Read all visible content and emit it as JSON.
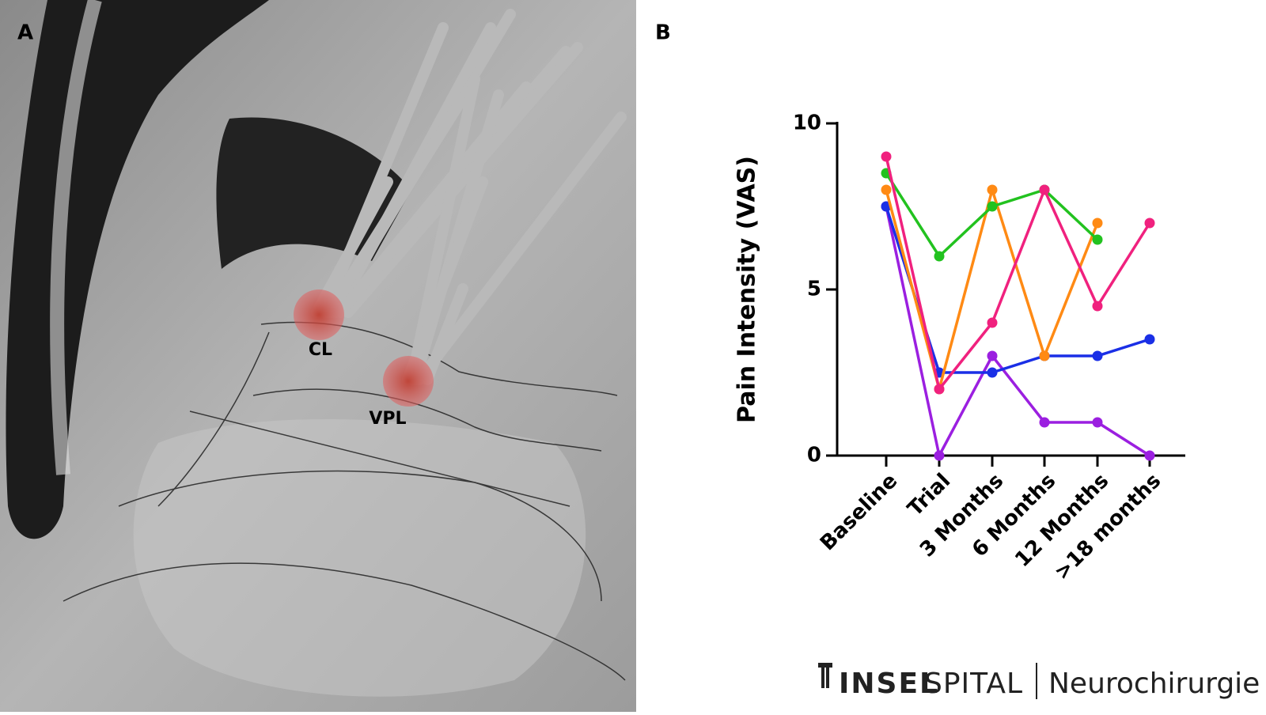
{
  "panels": {
    "a": {
      "label": "A",
      "annotations": [
        "CL",
        "VPL"
      ]
    },
    "b": {
      "label": "B"
    }
  },
  "chart_data": {
    "type": "line",
    "y_label": "Pain Intensity (VAS)",
    "categories": [
      "Baseline",
      "Trial",
      "3 Months",
      "6 Months",
      "12 Months",
      ">18 months"
    ],
    "series": [
      {
        "name": null,
        "color": "#9b1fe0",
        "values": [
          7.5,
          0,
          3,
          1,
          1,
          0
        ]
      },
      {
        "name": null,
        "color": "#1a2fe6",
        "values": [
          7.5,
          2.5,
          2.5,
          3,
          3,
          3.5
        ]
      },
      {
        "name": null,
        "color": "#ff8a14",
        "values": [
          8,
          2,
          8,
          3,
          7,
          null
        ]
      },
      {
        "name": null,
        "color": "#22c21f",
        "values": [
          8.5,
          6,
          7.5,
          8,
          6.5,
          null
        ]
      },
      {
        "name": null,
        "color": "#f0217e",
        "values": [
          9,
          2,
          4,
          8,
          4.5,
          7
        ]
      }
    ],
    "ylim": [
      0,
      10
    ],
    "yticks": [
      0,
      5,
      10
    ]
  },
  "logo": {
    "brand_bold": "INSEL",
    "brand_light": "SPITAL",
    "department": "Neurochirurgie"
  }
}
